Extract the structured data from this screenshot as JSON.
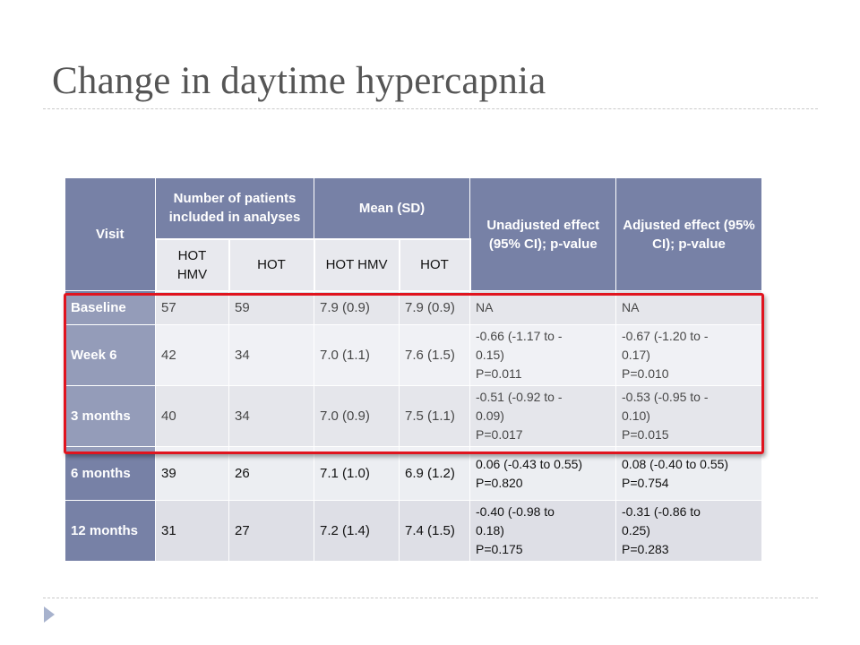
{
  "title": "Change in daytime hypercapnia",
  "table": {
    "headers": {
      "visit": "Visit",
      "patients": "Number of patients included in analyses",
      "mean": "Mean (SD)",
      "unadjusted": "Unadjusted effect (95% CI); p-value",
      "adjusted": "Adjusted effect (95% CI); p-value",
      "sub": [
        "HOT HMV",
        "HOT",
        "HOT HMV",
        "HOT"
      ]
    },
    "rows": [
      {
        "visit": "Baseline",
        "n_hothmv": "57",
        "n_hot": "59",
        "mean_hothmv": "7.9 (0.9)",
        "mean_hot": "7.9 (0.9)",
        "unadj": [
          "NA"
        ],
        "adj": [
          "NA"
        ]
      },
      {
        "visit": "Week 6",
        "n_hothmv": "42",
        "n_hot": "34",
        "mean_hothmv": "7.0 (1.1)",
        "mean_hot": "7.6 (1.5)",
        "unadj": [
          "-0.66 (-1.17 to -",
          "0.15)",
          "P=0.011"
        ],
        "adj": [
          "-0.67 (-1.20 to -",
          "0.17)",
          "P=0.010"
        ]
      },
      {
        "visit": "3 months",
        "n_hothmv": "40",
        "n_hot": "34",
        "mean_hothmv": "7.0 (0.9)",
        "mean_hot": "7.5 (1.1)",
        "unadj": [
          "-0.51 (-0.92 to -",
          "0.09)",
          "P=0.017"
        ],
        "adj": [
          "-0.53 (-0.95 to -",
          "0.10)",
          "P=0.015"
        ]
      },
      {
        "visit": "6 months",
        "n_hothmv": "39",
        "n_hot": "26",
        "mean_hothmv": "7.1 (1.0)",
        "mean_hot": "6.9 (1.2)",
        "unadj": [
          "0.06 (-0.43 to 0.55)",
          "P=0.820"
        ],
        "adj": [
          "0.08 (-0.40 to 0.55)",
          "P=0.754"
        ]
      },
      {
        "visit": "12 months",
        "n_hothmv": "31",
        "n_hot": "27",
        "mean_hothmv": "7.2 (1.4)",
        "mean_hot": "7.4 (1.5)",
        "unadj": [
          "-0.40 (-0.98 to",
          "0.18)",
          "P=0.175"
        ],
        "adj": [
          "-0.31 (-0.86 to",
          "0.25)",
          "P=0.283"
        ]
      }
    ]
  },
  "icons": {
    "bullet": "triangle-right-icon"
  },
  "colors": {
    "header": "#7781a6",
    "highlight": "#e0141e",
    "row_odd": "#dedfe6",
    "row_even": "#eceef2"
  }
}
